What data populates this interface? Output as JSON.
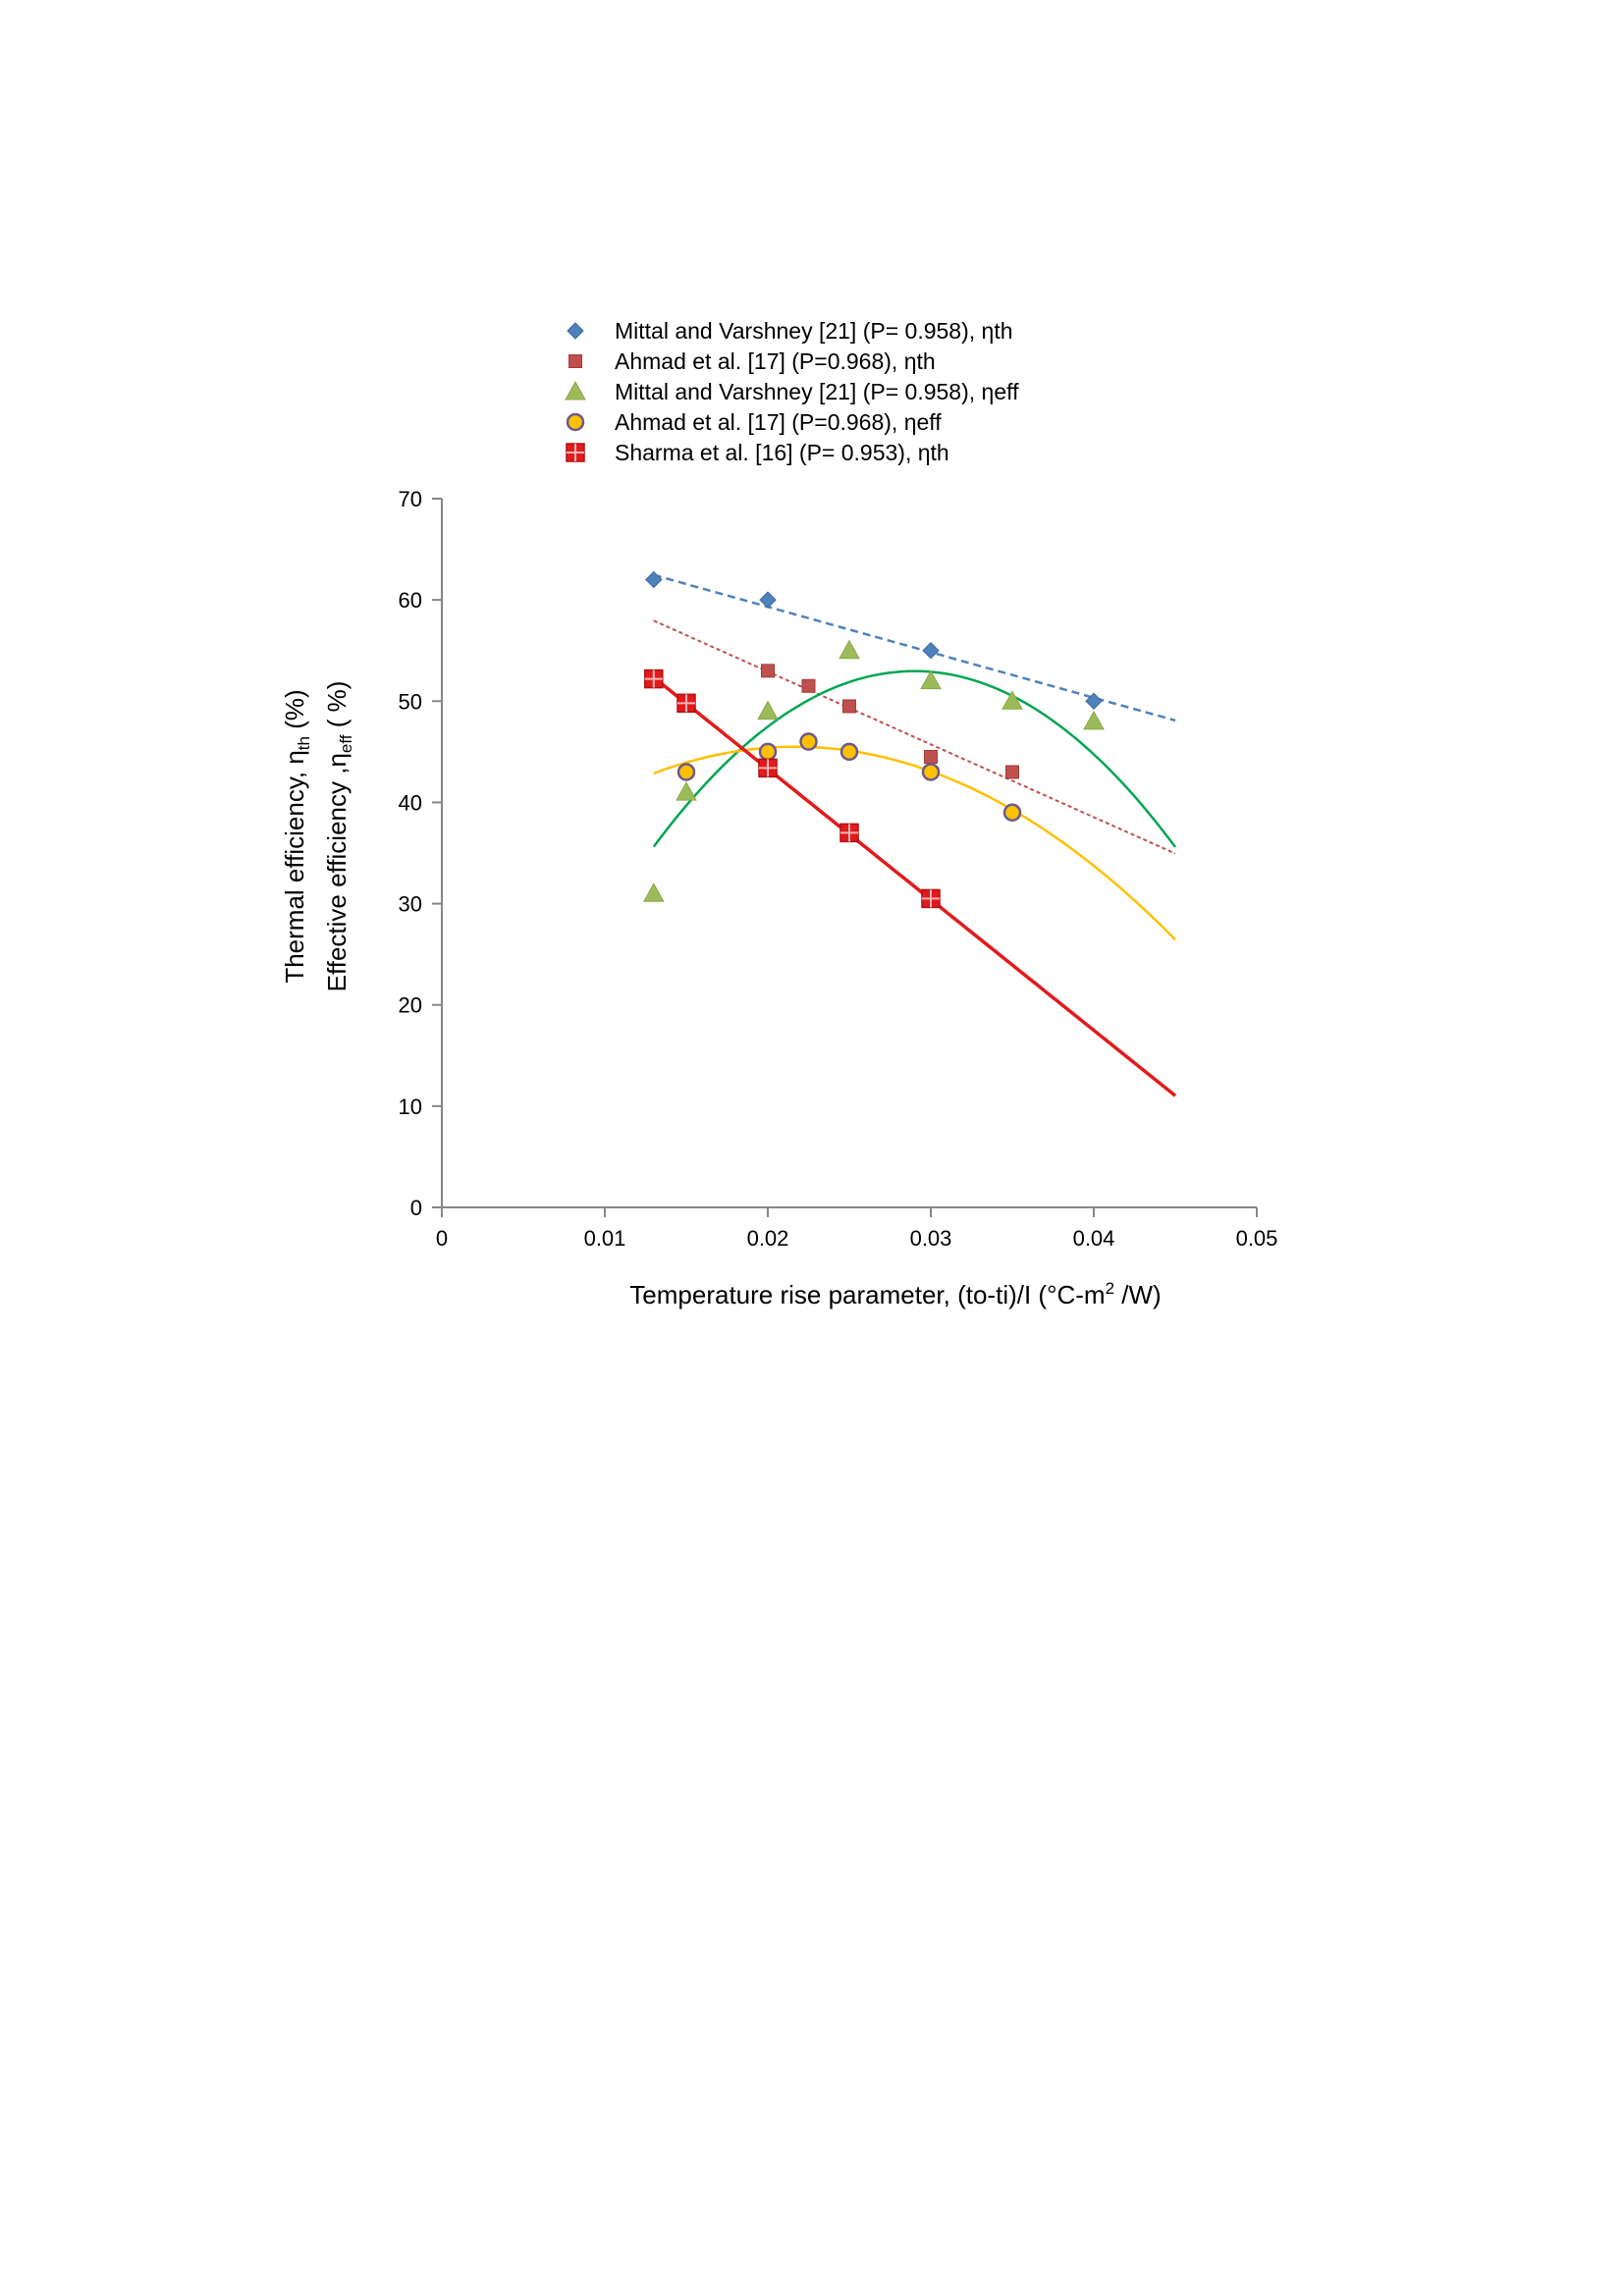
{
  "chart_data": {
    "type": "scatter",
    "title": "",
    "xlabel": "Temperature rise parameter, (to-ti)/I (°C-m",
    "xlabel_sup": "2",
    "xlabel_tail": " /W)",
    "ylabel_line1": {
      "main": "Thermal efficiency, η",
      "sub": "th",
      "tail": " (%)"
    },
    "ylabel_line2": {
      "main": "Effective efficiency ,η",
      "sub": "eff",
      "tail": " ( %)"
    },
    "xlim": [
      0,
      0.05
    ],
    "ylim": [
      0,
      70
    ],
    "x_ticks": [
      0,
      0.01,
      0.02,
      0.03,
      0.04,
      0.05
    ],
    "x_tick_labels": [
      "0",
      "0.01",
      "0.02",
      "0.03",
      "0.04",
      "0.05"
    ],
    "y_ticks": [
      0,
      10,
      20,
      30,
      40,
      50,
      60,
      70
    ],
    "y_tick_labels": [
      "0",
      "10",
      "20",
      "30",
      "40",
      "50",
      "60",
      "70"
    ],
    "grid": false,
    "legend_position": "top",
    "series": [
      {
        "name": "Mittal and Varshney [21] (P= 0.958), ηth",
        "marker": "diamond",
        "color": "#4F81BD",
        "x": [
          0.013,
          0.02,
          0.03,
          0.04
        ],
        "y": [
          62,
          60,
          55,
          50
        ],
        "trend": {
          "kind": "linear",
          "x_range": [
            0.013,
            0.045
          ],
          "coefficients": [
            68.3,
            -449
          ],
          "color": "#4F81BD",
          "style": "dashed"
        }
      },
      {
        "name": "Ahmad et al. [17] (P=0.968), ηth",
        "marker": "square",
        "color": "#C0504D",
        "x": [
          0.02,
          0.0225,
          0.025,
          0.03,
          0.035
        ],
        "y": [
          53,
          51.5,
          49.5,
          44.5,
          43
        ],
        "trend": {
          "kind": "linear",
          "x_range": [
            0.013,
            0.045
          ],
          "coefficients": [
            67.3,
            -719
          ],
          "color": "#C0504D",
          "style": "dotted"
        }
      },
      {
        "name": "Mittal and Varshney [21] (P= 0.958), ηeff",
        "marker": "triangle",
        "color": "#9BBB59",
        "x": [
          0.013,
          0.015,
          0.02,
          0.025,
          0.03,
          0.035,
          0.04
        ],
        "y": [
          31,
          41,
          49,
          55,
          52,
          50,
          48
        ],
        "trend": {
          "kind": "quadratic",
          "x_range": [
            0.013,
            0.045
          ],
          "coefficients": [
            -4.03,
            3932,
            -67813
          ],
          "color": "#00A651",
          "style": "solid"
        }
      },
      {
        "name": "Ahmad et al. [17] (P=0.968), ηeff",
        "marker": "circle",
        "color": "#FFC000",
        "x": [
          0.015,
          0.02,
          0.0225,
          0.025,
          0.03,
          0.035
        ],
        "y": [
          43,
          45,
          46,
          45,
          43,
          39
        ],
        "trend": {
          "kind": "quadratic",
          "x_range": [
            0.013,
            0.045
          ],
          "coefficients": [
            29.06,
            1517,
            -35000
          ],
          "color": "#FFC000",
          "style": "solid"
        }
      },
      {
        "name": "Sharma et al. [16] (P= 0.953), ηth",
        "marker": "square-cross",
        "color": "#E31A1C",
        "x": [
          0.013,
          0.015,
          0.02,
          0.025,
          0.03
        ],
        "y": [
          52.2,
          49.8,
          43.4,
          37,
          30.5
        ],
        "trend": {
          "kind": "linear",
          "x_range": [
            0.013,
            0.045
          ],
          "coefficients": [
            69.13,
            -1291
          ],
          "color": "#E31A1C",
          "style": "solid"
        }
      }
    ]
  }
}
